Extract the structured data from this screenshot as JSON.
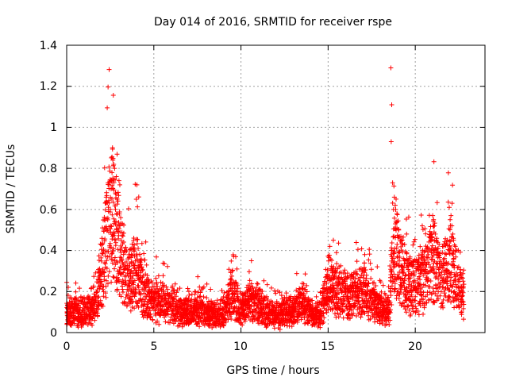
{
  "chart_data": {
    "type": "scatter",
    "title": "Day 014 of 2016, SRMTID for receiver rspe",
    "xlabel": "GPS time / hours",
    "ylabel": "SRMTID / TECUs",
    "xlim": [
      0,
      24
    ],
    "ylim": [
      0,
      1.4
    ],
    "grid": true,
    "marker": "+",
    "color": "#ff0000",
    "x_ticks": [
      0,
      5,
      10,
      15,
      20
    ],
    "y_ticks": [
      0,
      0.2,
      0.4,
      0.6,
      0.8,
      1,
      1.2,
      1.4
    ],
    "x_tick_labels": [
      "0",
      "5",
      "10",
      "15",
      "20"
    ],
    "y_tick_labels": [
      "0",
      "0.2",
      "0.4",
      "0.6",
      "0.8",
      "1",
      "1.2",
      "1.4"
    ],
    "series": [
      {
        "name": "SRMTID",
        "profile": [
          [
            0.0,
            0.1
          ],
          [
            0.5,
            0.1
          ],
          [
            1.0,
            0.1
          ],
          [
            1.5,
            0.1
          ],
          [
            1.8,
            0.2
          ],
          [
            2.2,
            0.4
          ],
          [
            2.6,
            0.6
          ],
          [
            3.0,
            0.4
          ],
          [
            3.5,
            0.25
          ],
          [
            4.0,
            0.3
          ],
          [
            4.5,
            0.18
          ],
          [
            5.0,
            0.15
          ],
          [
            5.5,
            0.15
          ],
          [
            6.0,
            0.13
          ],
          [
            6.5,
            0.1
          ],
          [
            7.0,
            0.1
          ],
          [
            7.5,
            0.12
          ],
          [
            8.0,
            0.1
          ],
          [
            8.5,
            0.08
          ],
          [
            9.0,
            0.1
          ],
          [
            9.5,
            0.2
          ],
          [
            10.0,
            0.1
          ],
          [
            10.5,
            0.15
          ],
          [
            11.0,
            0.12
          ],
          [
            11.5,
            0.1
          ],
          [
            12.0,
            0.08
          ],
          [
            12.5,
            0.1
          ],
          [
            13.0,
            0.1
          ],
          [
            13.5,
            0.15
          ],
          [
            14.0,
            0.1
          ],
          [
            14.5,
            0.08
          ],
          [
            15.0,
            0.25
          ],
          [
            15.5,
            0.2
          ],
          [
            16.0,
            0.2
          ],
          [
            16.5,
            0.18
          ],
          [
            17.0,
            0.22
          ],
          [
            17.5,
            0.15
          ],
          [
            18.0,
            0.12
          ],
          [
            18.5,
            0.1
          ],
          [
            18.7,
            0.4
          ],
          [
            19.0,
            0.35
          ],
          [
            19.5,
            0.25
          ],
          [
            20.0,
            0.22
          ],
          [
            20.5,
            0.25
          ],
          [
            21.0,
            0.35
          ],
          [
            21.5,
            0.25
          ],
          [
            22.0,
            0.35
          ],
          [
            22.3,
            0.3
          ],
          [
            22.5,
            0.2
          ],
          [
            22.8,
            0.18
          ]
        ],
        "peaks": [
          [
            2.65,
            0.84
          ],
          [
            2.7,
            0.82
          ],
          [
            2.75,
            0.8
          ],
          [
            2.6,
            0.78
          ],
          [
            2.85,
            0.76
          ],
          [
            3.0,
            0.74
          ],
          [
            3.05,
            0.72
          ],
          [
            2.55,
            0.7
          ],
          [
            2.8,
            0.68
          ],
          [
            2.9,
            0.65
          ],
          [
            2.5,
            0.6
          ],
          [
            3.1,
            0.56
          ],
          [
            3.2,
            0.53
          ],
          [
            4.1,
            0.41
          ],
          [
            4.2,
            0.38
          ],
          [
            9.7,
            0.37
          ],
          [
            10.6,
            0.35
          ],
          [
            15.1,
            0.42
          ],
          [
            15.3,
            0.45
          ],
          [
            17.1,
            0.38
          ],
          [
            18.6,
            1.29
          ],
          [
            18.65,
            1.11
          ],
          [
            18.62,
            0.93
          ],
          [
            18.7,
            0.73
          ],
          [
            18.8,
            0.66
          ],
          [
            18.9,
            0.65
          ],
          [
            18.85,
            0.62
          ],
          [
            18.75,
            0.6
          ],
          [
            18.95,
            0.58
          ],
          [
            19.05,
            0.5
          ],
          [
            19.5,
            0.48
          ],
          [
            20.4,
            0.52
          ],
          [
            21.0,
            0.57
          ],
          [
            21.05,
            0.55
          ],
          [
            21.1,
            0.52
          ],
          [
            21.15,
            0.48
          ],
          [
            21.2,
            0.45
          ],
          [
            21.95,
            0.61
          ],
          [
            22.05,
            0.57
          ],
          [
            22.0,
            0.55
          ],
          [
            22.1,
            0.52
          ],
          [
            22.15,
            0.48
          ],
          [
            22.2,
            0.45
          ],
          [
            22.3,
            0.42
          ],
          [
            22.4,
            0.4
          ]
        ]
      }
    ]
  }
}
